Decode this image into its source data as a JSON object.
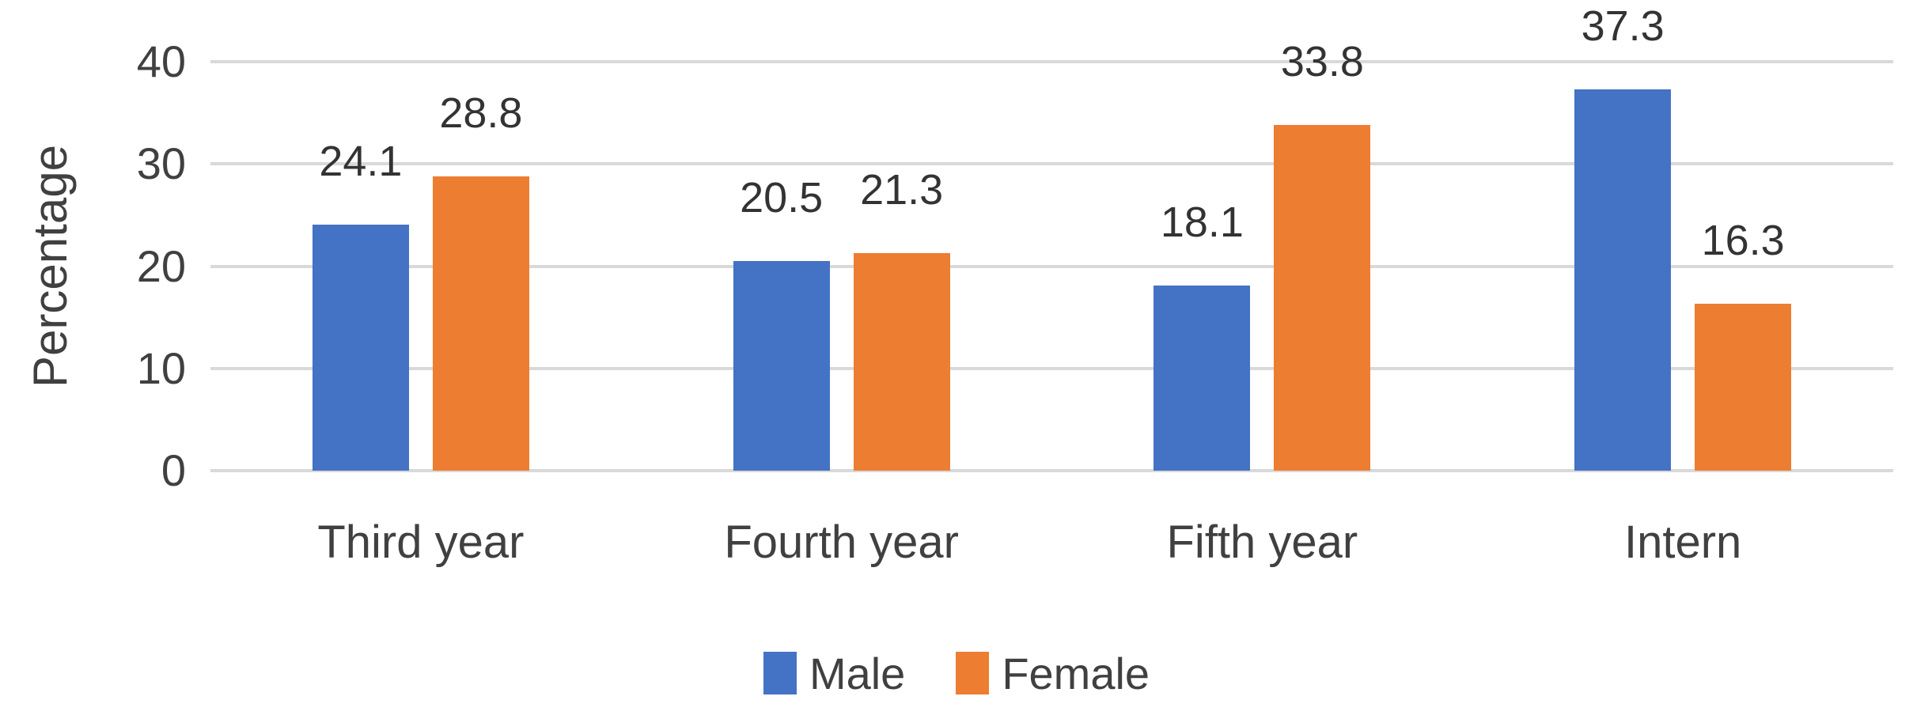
{
  "chart_data": {
    "type": "bar",
    "categories": [
      "Third year",
      "Fourth year",
      "Fifth year",
      "Intern"
    ],
    "series": [
      {
        "name": "Male",
        "color": "#4472C4",
        "values": [
          24.1,
          20.5,
          18.1,
          37.3
        ]
      },
      {
        "name": "Female",
        "color": "#ED7D31",
        "values": [
          28.8,
          21.3,
          33.8,
          16.3
        ]
      }
    ],
    "title": "",
    "xlabel": "",
    "ylabel": "Percentage",
    "ylim": [
      0,
      40
    ],
    "yticks": [
      0,
      10,
      20,
      30,
      40
    ],
    "grid": "horizontal",
    "gridline_color": "#d9d9d9",
    "axis_text_color": "#404040",
    "data_label_color": "#333333",
    "legend_position": "bottom-center",
    "data_labels": "outside-end",
    "background": "#ffffff"
  }
}
